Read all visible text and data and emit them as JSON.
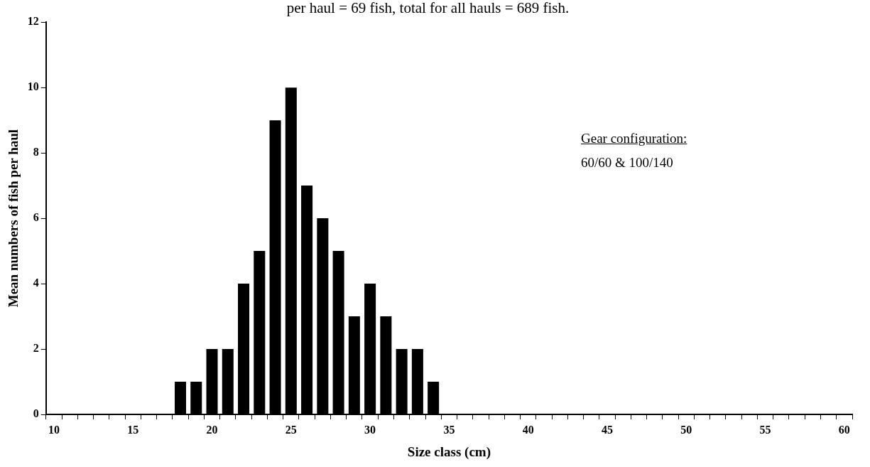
{
  "chart_data": {
    "type": "bar",
    "title": "per haul = 69 fish, total for all hauls = 689 fish.",
    "xlabel": "Size class (cm)",
    "ylabel": "Mean numbers of fish per haul",
    "categories": [
      "10",
      null,
      null,
      null,
      null,
      "15",
      null,
      null,
      null,
      null,
      "20",
      null,
      null,
      null,
      null,
      "25",
      null,
      null,
      null,
      null,
      "30",
      null,
      null,
      null,
      null,
      "35",
      null,
      null,
      null,
      null,
      "40",
      null,
      null,
      null,
      null,
      "45",
      null,
      null,
      null,
      null,
      "50",
      null,
      null,
      null,
      null,
      "55",
      null,
      null,
      null,
      null,
      "60"
    ],
    "values": [
      0,
      0,
      0,
      0,
      0,
      0,
      0,
      0,
      1,
      1,
      2,
      2,
      4,
      5,
      9,
      10,
      7,
      6,
      5,
      3,
      4,
      3,
      2,
      2,
      1,
      0,
      0,
      0,
      0,
      0,
      0,
      0,
      0,
      0,
      0,
      0,
      0,
      0,
      0,
      0,
      0,
      0,
      0,
      0,
      0,
      0,
      0,
      0,
      0,
      0,
      0
    ],
    "color": "#000000",
    "ylim": [
      0,
      12
    ],
    "yticks": [
      0,
      2,
      4,
      6,
      8,
      10,
      12
    ],
    "grid": false,
    "annotations": [
      "Gear configuration:",
      "60/60 & 100/140"
    ]
  }
}
